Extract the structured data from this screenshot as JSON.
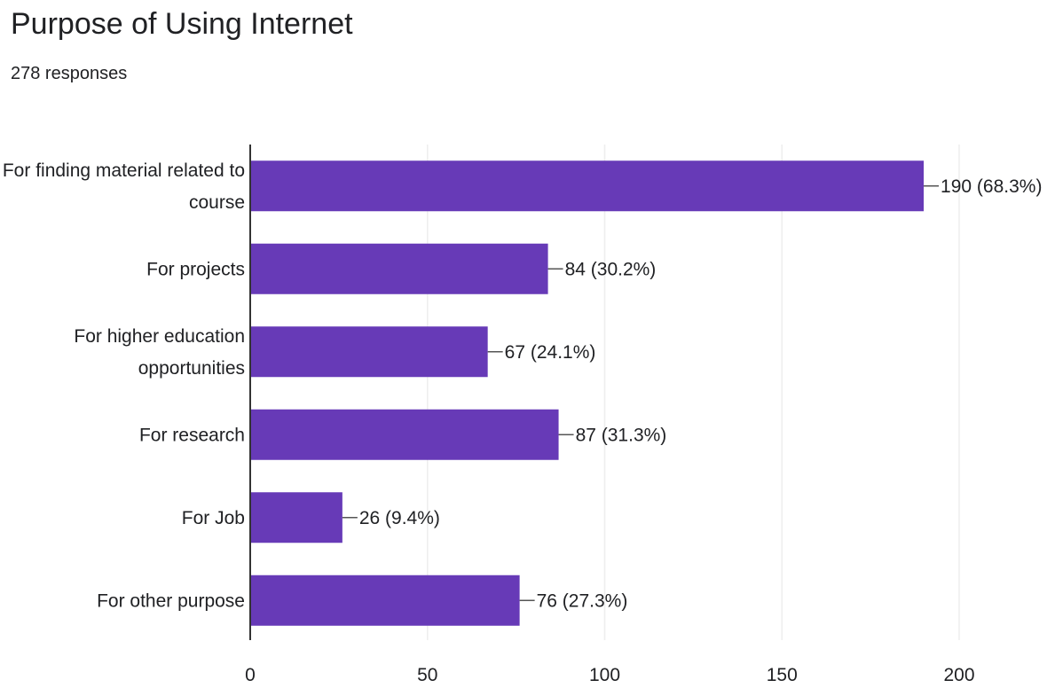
{
  "chart_data": {
    "type": "bar",
    "orientation": "horizontal",
    "title": "Purpose of Using Internet",
    "subtitle": "278 responses",
    "categories": [
      "For finding material related to course",
      "For projects",
      "For higher education opportunities",
      "For research",
      "For Job",
      "For other purpose"
    ],
    "category_label_lines": [
      [
        "For finding material related to",
        "course"
      ],
      [
        "For projects"
      ],
      [
        "For higher education",
        "opportunities"
      ],
      [
        "For research"
      ],
      [
        "For Job"
      ],
      [
        "For other purpose"
      ]
    ],
    "values": [
      190,
      84,
      67,
      87,
      26,
      76
    ],
    "data_labels": [
      "190 (68.3%)",
      "84 (30.2%)",
      "67 (24.1%)",
      "87 (31.3%)",
      "26 (9.4%)",
      "76 (27.3%)"
    ],
    "xlim": [
      0,
      200
    ],
    "x_ticks": [
      0,
      50,
      100,
      150,
      200
    ],
    "grid": true,
    "legend": "none",
    "colors": {
      "bar": "#673ab7",
      "grid": "#eeeeee",
      "axis": "#333333",
      "text": "#202124",
      "leader": "#555555"
    }
  }
}
